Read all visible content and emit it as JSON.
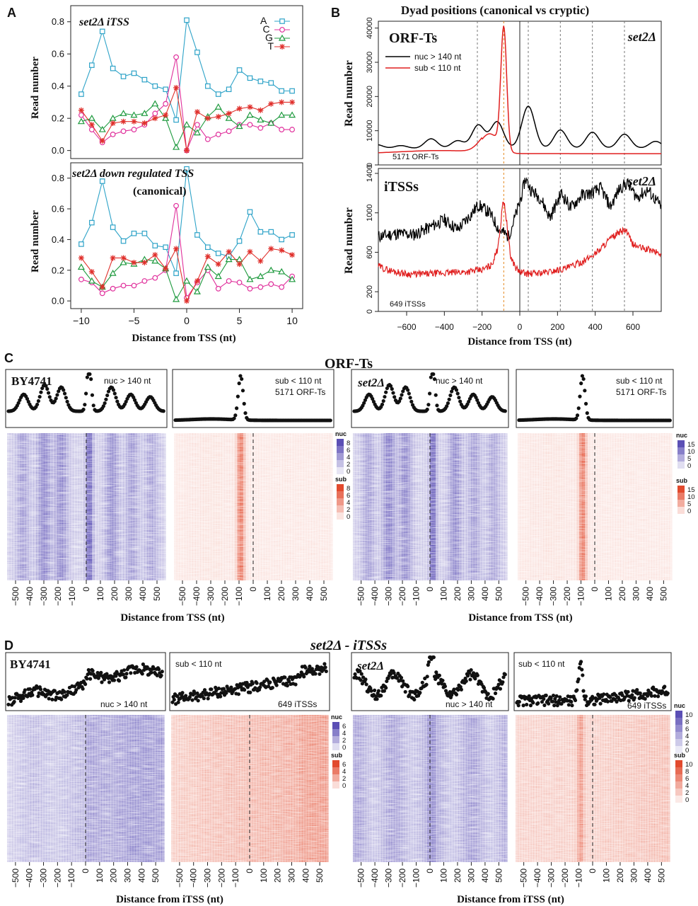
{
  "colors": {
    "A": "#2ea3c8",
    "C": "#e0309c",
    "G": "#1e9a3e",
    "T": "#e0302c",
    "nuc": "#000000",
    "sub": "#e01f1f",
    "orange": "#e5871c",
    "heat_nuc": "#5b4fb5",
    "heat_sub": "#e24a2e"
  },
  "panels": {
    "A": "A",
    "B": "B",
    "C": "C",
    "D": "D"
  },
  "chart_data": [
    {
      "id": "A1",
      "type": "line",
      "title": "set2Δ iTSS",
      "xlabel": "",
      "ylabel": "Read number",
      "xlim": [
        -11,
        11
      ],
      "ylim": [
        -0.05,
        0.9
      ],
      "y_ticks": [
        "0.0",
        "0.2",
        "0.4",
        "0.6",
        "0.8"
      ],
      "legend": [
        "A",
        "C",
        "G",
        "T"
      ],
      "x": [
        -10,
        -9,
        -8,
        -7,
        -6,
        -5,
        -4,
        -3,
        -2,
        -1,
        0,
        1,
        2,
        3,
        4,
        5,
        6,
        7,
        8,
        9,
        10
      ],
      "series": [
        {
          "name": "A",
          "values": [
            0.35,
            0.53,
            0.74,
            0.51,
            0.46,
            0.48,
            0.44,
            0.4,
            0.38,
            0.19,
            0.81,
            0.61,
            0.4,
            0.35,
            0.38,
            0.5,
            0.45,
            0.43,
            0.42,
            0.37,
            0.37
          ]
        },
        {
          "name": "C",
          "values": [
            0.22,
            0.13,
            0.05,
            0.1,
            0.12,
            0.13,
            0.16,
            0.23,
            0.29,
            0.58,
            0.0,
            0.16,
            0.07,
            0.1,
            0.12,
            0.16,
            0.16,
            0.14,
            0.17,
            0.13,
            0.13
          ]
        },
        {
          "name": "G",
          "values": [
            0.18,
            0.2,
            0.13,
            0.2,
            0.23,
            0.22,
            0.23,
            0.29,
            0.2,
            0.02,
            0.16,
            0.11,
            0.21,
            0.27,
            0.2,
            0.15,
            0.22,
            0.19,
            0.17,
            0.22,
            0.22
          ]
        },
        {
          "name": "T",
          "values": [
            0.25,
            0.16,
            0.06,
            0.17,
            0.18,
            0.18,
            0.17,
            0.2,
            0.22,
            0.39,
            0.0,
            0.24,
            0.2,
            0.21,
            0.23,
            0.26,
            0.27,
            0.25,
            0.29,
            0.3,
            0.3
          ]
        }
      ]
    },
    {
      "id": "A2",
      "type": "line",
      "title": "set2Δ down regulated TSS",
      "subtitle": "(canonical)",
      "xlabel": "Distance from TSS (nt)",
      "ylabel": "Read number",
      "xlim": [
        -11,
        11
      ],
      "ylim": [
        -0.05,
        0.9
      ],
      "y_ticks": [
        "0.0",
        "0.2",
        "0.4",
        "0.6",
        "0.8"
      ],
      "x_ticks": [
        "−10",
        "−5",
        "0",
        "5",
        "10"
      ],
      "x": [
        -10,
        -9,
        -8,
        -7,
        -6,
        -5,
        -4,
        -3,
        -2,
        -1,
        0,
        1,
        2,
        3,
        4,
        5,
        6,
        7,
        8,
        9,
        10
      ],
      "series": [
        {
          "name": "A",
          "values": [
            0.37,
            0.51,
            0.78,
            0.48,
            0.39,
            0.44,
            0.44,
            0.36,
            0.35,
            0.18,
            0.86,
            0.43,
            0.35,
            0.31,
            0.29,
            0.39,
            0.58,
            0.45,
            0.45,
            0.4,
            0.43
          ]
        },
        {
          "name": "C",
          "values": [
            0.14,
            0.12,
            0.05,
            0.08,
            0.1,
            0.1,
            0.13,
            0.15,
            0.2,
            0.62,
            0.02,
            0.12,
            0.2,
            0.08,
            0.13,
            0.12,
            0.08,
            0.09,
            0.11,
            0.09,
            0.16
          ]
        },
        {
          "name": "G",
          "values": [
            0.22,
            0.13,
            0.09,
            0.18,
            0.25,
            0.24,
            0.27,
            0.26,
            0.21,
            0.01,
            0.13,
            0.06,
            0.22,
            0.16,
            0.27,
            0.27,
            0.14,
            0.16,
            0.2,
            0.19,
            0.14
          ]
        },
        {
          "name": "T",
          "values": [
            0.28,
            0.19,
            0.09,
            0.28,
            0.28,
            0.25,
            0.25,
            0.3,
            0.21,
            0.34,
            0.0,
            0.13,
            0.29,
            0.24,
            0.32,
            0.24,
            0.32,
            0.26,
            0.34,
            0.33,
            0.3
          ]
        }
      ]
    },
    {
      "id": "B1",
      "type": "line",
      "title": "Dyad positions (canonical vs cryptic)",
      "panel_label": "ORF-Ts",
      "strain": "set2Δ",
      "count": "5171 ORF-Ts",
      "ylabel": "Read number",
      "xlim": [
        -750,
        750
      ],
      "ylim": [
        0,
        42000
      ],
      "y_ticks": [
        "0",
        "10000",
        "20000",
        "30000",
        "40000"
      ],
      "legend": [
        "nuc > 140 nt",
        "sub < 110 nt"
      ],
      "peak_markers": [
        -225,
        -85,
        45,
        215,
        385,
        555
      ],
      "nuc_peaks": [
        [
          -760,
          6000
        ],
        [
          -630,
          5700
        ],
        [
          -470,
          7800
        ],
        [
          -330,
          7200
        ],
        [
          -220,
          12000
        ],
        [
          -120,
          13000
        ],
        [
          45,
          17800
        ],
        [
          215,
          10500
        ],
        [
          385,
          9800
        ],
        [
          555,
          9200
        ],
        [
          720,
          7000
        ]
      ],
      "nuc_baseline": 4800,
      "sub_peak": [
        -85,
        38800
      ],
      "sub_baseline": 3300
    },
    {
      "id": "B2",
      "type": "line",
      "panel_label": "iTSSs",
      "strain": "set2Δ",
      "count": "649 iTSSs",
      "xlabel": "Distance from TSS (nt)",
      "ylabel": "Read number",
      "xlim": [
        -750,
        750
      ],
      "ylim": [
        0,
        1450
      ],
      "y_ticks": [
        "0",
        "200",
        "600",
        "1000",
        "1400"
      ],
      "x_ticks": [
        "−600",
        "−400",
        "−200",
        "0",
        "200",
        "400",
        "600"
      ],
      "nuc_profile": [
        [
          -750,
          760
        ],
        [
          -650,
          790
        ],
        [
          -560,
          780
        ],
        [
          -480,
          850
        ],
        [
          -400,
          930
        ],
        [
          -330,
          830
        ],
        [
          -260,
          980
        ],
        [
          -220,
          1080
        ],
        [
          -160,
          1000
        ],
        [
          -110,
          830
        ],
        [
          -60,
          760
        ],
        [
          0,
          1100
        ],
        [
          30,
          1350
        ],
        [
          60,
          1230
        ],
        [
          110,
          1150
        ],
        [
          160,
          950
        ],
        [
          220,
          1200
        ],
        [
          270,
          1050
        ],
        [
          330,
          1180
        ],
        [
          380,
          1200
        ],
        [
          430,
          1250
        ],
        [
          480,
          1060
        ],
        [
          530,
          1250
        ],
        [
          570,
          1300
        ],
        [
          620,
          1160
        ],
        [
          680,
          1230
        ],
        [
          750,
          1060
        ]
      ],
      "sub_profile": [
        [
          -750,
          460
        ],
        [
          -700,
          420
        ],
        [
          -600,
          380
        ],
        [
          -500,
          380
        ],
        [
          -400,
          390
        ],
        [
          -300,
          400
        ],
        [
          -200,
          420
        ],
        [
          -150,
          470
        ],
        [
          -120,
          620
        ],
        [
          -100,
          900
        ],
        [
          -88,
          1150
        ],
        [
          -75,
          1000
        ],
        [
          -50,
          560
        ],
        [
          -20,
          440
        ],
        [
          0,
          400
        ],
        [
          50,
          380
        ],
        [
          150,
          400
        ],
        [
          250,
          440
        ],
        [
          350,
          520
        ],
        [
          420,
          620
        ],
        [
          470,
          720
        ],
        [
          520,
          790
        ],
        [
          560,
          830
        ],
        [
          600,
          680
        ],
        [
          650,
          640
        ],
        [
          700,
          620
        ],
        [
          750,
          580
        ]
      ]
    },
    {
      "id": "C",
      "type": "heatmap",
      "title": "ORF-Ts",
      "xlabel": "Distance from TSS (nt)",
      "x_ticks": [
        "−500",
        "−400",
        "−300",
        "−200",
        "−100",
        "0",
        "100",
        "200",
        "300",
        "400",
        "500"
      ],
      "panels": [
        {
          "strain": "BY4741",
          "label": "nuc > 140 nt",
          "kind": "nuc",
          "count": "",
          "scale": [
            "8",
            "6",
            "4",
            "2",
            "0"
          ],
          "scale_label": "nuc"
        },
        {
          "strain": "",
          "label": "sub < 110 nt",
          "kind": "sub",
          "count": "5171 ORF-Ts",
          "scale": [
            "8",
            "6",
            "4",
            "2",
            "0"
          ],
          "scale_label": "sub"
        },
        {
          "strain": "set2Δ",
          "label": "nuc > 140 nt",
          "kind": "nuc",
          "count": "",
          "scale": [
            "15",
            "10",
            "5",
            "0"
          ],
          "scale_label": "nuc"
        },
        {
          "strain": "",
          "label": "sub < 110 nt",
          "kind": "sub",
          "count": "5171 ORF-Ts",
          "scale": [
            "15",
            "10",
            "5",
            "0"
          ],
          "scale_label": "sub"
        }
      ]
    },
    {
      "id": "D",
      "type": "heatmap",
      "title": "set2Δ - iTSSs",
      "xlabel": "Distance from iTSS (nt)",
      "x_ticks": [
        "−500",
        "−400",
        "−300",
        "−200",
        "−100",
        "0",
        "100",
        "200",
        "300",
        "400",
        "500"
      ],
      "panels": [
        {
          "strain": "BY4741",
          "label": "nuc > 140 nt",
          "kind": "nuc",
          "count": "",
          "scale": [
            "6",
            "4",
            "2",
            "0"
          ],
          "scale_label": "nuc"
        },
        {
          "strain": "",
          "label": "sub < 110 nt",
          "kind": "sub",
          "count": "649 iTSSs",
          "scale": [
            "6",
            "4",
            "2",
            "0"
          ],
          "scale_label": "sub"
        },
        {
          "strain": "set2Δ",
          "label": "nuc > 140 nt",
          "kind": "nuc",
          "count": "",
          "scale": [
            "10",
            "8",
            "6",
            "4",
            "2",
            "0"
          ],
          "scale_label": "nuc"
        },
        {
          "strain": "",
          "label": "sub < 110 nt",
          "kind": "sub",
          "count": "649 iTSSs",
          "scale": [
            "10",
            "8",
            "6",
            "4",
            "2",
            "0"
          ],
          "scale_label": "sub"
        }
      ]
    }
  ]
}
